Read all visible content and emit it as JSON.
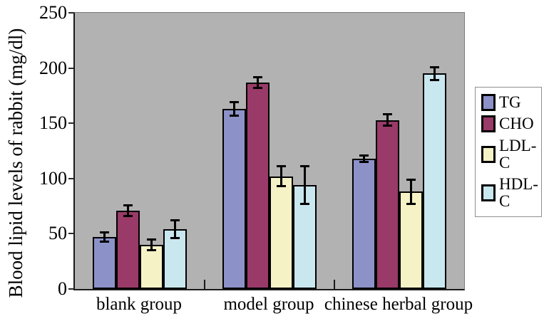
{
  "chart_data": {
    "type": "bar",
    "title": "",
    "xlabel": "",
    "ylabel": "Blood lipid levels of rabbit (mg/dl)",
    "ylim": [
      0,
      250
    ],
    "yticks": [
      0,
      50,
      100,
      150,
      200,
      250
    ],
    "categories": [
      "blank group",
      "model group",
      "chinese herbal group"
    ],
    "series": [
      {
        "name": "TG",
        "color": "#8c92c8",
        "values": [
          47,
          163,
          118
        ],
        "errors": [
          4,
          6,
          3
        ]
      },
      {
        "name": "CHO",
        "color": "#993a68",
        "values": [
          71,
          187,
          153
        ],
        "errors": [
          5,
          5,
          5
        ]
      },
      {
        "name": "LDL-C",
        "color": "#f5f2c6",
        "values": [
          40,
          102,
          88
        ],
        "errors": [
          5,
          9,
          11
        ]
      },
      {
        "name": "HDL-C",
        "color": "#c9e7ee",
        "values": [
          54,
          94,
          195
        ],
        "errors": [
          8,
          17,
          6
        ]
      }
    ],
    "legend_position": "right",
    "legend_labels": [
      "TG",
      "CHO",
      "LDL-C",
      "HDL-C"
    ],
    "plot_background": "#b2b2b2",
    "error_bar_color": "#000000",
    "grid": false
  }
}
